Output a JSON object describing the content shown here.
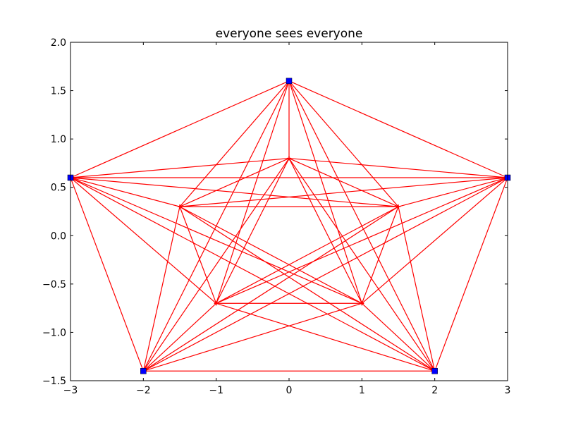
{
  "chart_data": {
    "type": "scatter",
    "title": "everyone sees everyone",
    "xlabel": "",
    "ylabel": "",
    "xlim": [
      -3,
      3
    ],
    "ylim": [
      -1.5,
      2.0
    ],
    "grid": false,
    "x_ticks": [
      -3,
      -2,
      -1,
      0,
      1,
      2,
      3
    ],
    "x_tick_labels": [
      "−3",
      "−2",
      "−1",
      "0",
      "1",
      "2",
      "3"
    ],
    "y_ticks": [
      -1.5,
      -1.0,
      -0.5,
      0.0,
      0.5,
      1.0,
      1.5,
      2.0
    ],
    "y_tick_labels": [
      "−1.5",
      "−1.0",
      "−0.5",
      "0.0",
      "0.5",
      "1.0",
      "1.5",
      "2.0"
    ],
    "outer_points": {
      "marker": "square",
      "color": "#0000ff",
      "points": [
        [
          0,
          1.6
        ],
        [
          -3,
          0.6
        ],
        [
          3,
          0.6
        ],
        [
          -2,
          -1.4
        ],
        [
          2,
          -1.4
        ]
      ]
    },
    "inner_points": {
      "marker": "plus",
      "color": "#ff0000",
      "points": [
        [
          0,
          0.8
        ],
        [
          -1.5,
          0.3
        ],
        [
          1.5,
          0.3
        ],
        [
          -1,
          -0.7
        ],
        [
          1,
          -0.7
        ]
      ]
    },
    "connections": {
      "color": "#ff0000",
      "rule": "all pairs"
    }
  }
}
